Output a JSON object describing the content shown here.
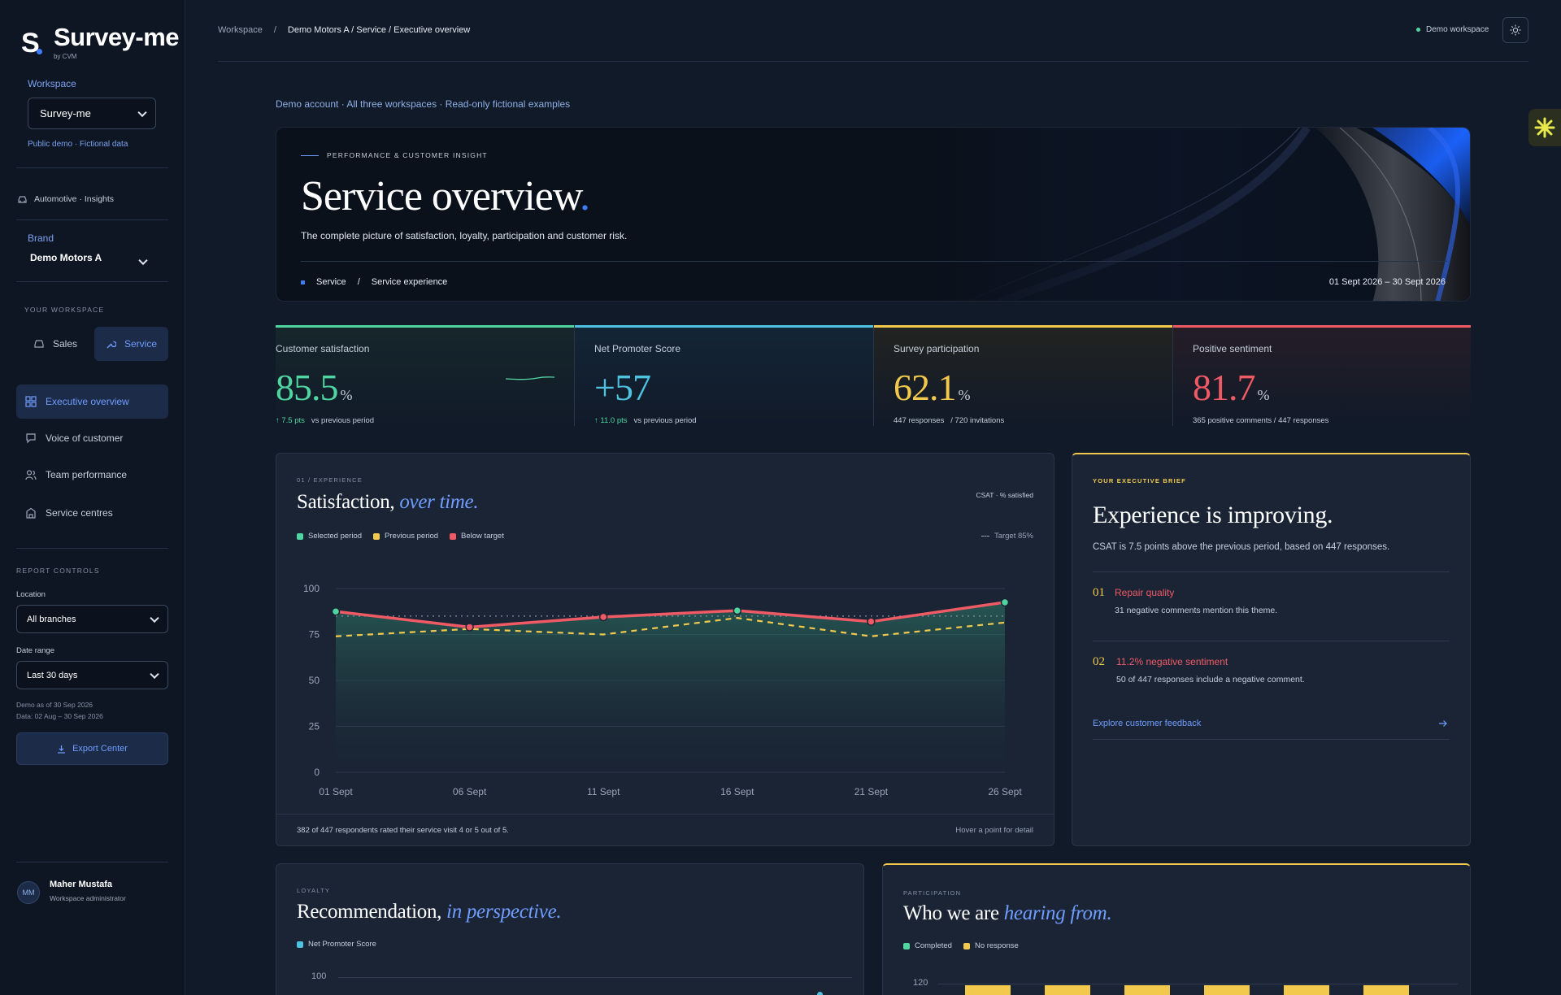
{
  "sidebar": {
    "logo_mark": "S",
    "logo_text": "Survey-me",
    "logo_sub": "by CVM",
    "workspace_label": "Workspace",
    "workspace_value": "Survey-me",
    "workspace_note": "Public demo · Fictional data",
    "industry": "Automotive · Insights",
    "brand_label": "Brand",
    "brand_value": "Demo Motors A",
    "your_workspace_label": "YOUR WORKSPACE",
    "seg_sales": "Sales",
    "seg_service": "Service",
    "nav": [
      {
        "label": "Executive overview",
        "icon": "grid-icon"
      },
      {
        "label": "Voice of customer",
        "icon": "chat-icon"
      },
      {
        "label": "Team performance",
        "icon": "people-icon"
      },
      {
        "label": "Service centres",
        "icon": "building-icon"
      }
    ],
    "report_controls_label": "REPORT CONTROLS",
    "location_label": "Location",
    "location_value": "All branches",
    "date_range_label": "Date range",
    "date_range_value": "Last 30 days",
    "demo_as_of": "Demo as of 30 Sep 2026",
    "data_range": "Data: 02 Aug – 30 Sep 2026",
    "export_label": "Export Center",
    "user_initials": "MM",
    "user_name": "Maher Mustafa",
    "user_role": "Workspace administrator"
  },
  "topbar": {
    "crumb_root": "Workspace",
    "crumb_sep": "/",
    "crumb_current": "Demo Motors A / Service / Executive overview",
    "workspace_badge": "Demo workspace"
  },
  "demo_note": "Demo account · All three workspaces · Read-only fictional examples",
  "hero": {
    "caption": "PERFORMANCE & CUSTOMER INSIGHT",
    "title": "Service overview",
    "title_dot": ".",
    "subtitle": "The complete picture of satisfaction, loyalty, participation and customer risk.",
    "tag1": "Service",
    "tag_sep": "/",
    "tag2": "Service experience",
    "date_range": "01 Sept 2026 – 30 Sept 2026"
  },
  "kpis": [
    {
      "label": "Customer satisfaction",
      "value": "85.5",
      "unit": "%",
      "delta": "↑ 7.5 pts",
      "foot": "vs previous period",
      "color": "#4fd6a0"
    },
    {
      "label": "Net Promoter Score",
      "value": "+57",
      "unit": "",
      "delta": "↑ 11.0 pts",
      "foot": "vs previous period",
      "color": "#4ec3e0"
    },
    {
      "label": "Survey participation",
      "value": "62.1",
      "unit": "%",
      "delta": "",
      "foot": "447 responses   / 720 invitations",
      "color": "#f2c94c"
    },
    {
      "label": "Positive sentiment",
      "value": "81.7",
      "unit": "%",
      "delta": "",
      "foot": "365 positive comments / 447 responses",
      "color": "#ef5a64"
    }
  ],
  "satisfaction": {
    "caption": "01 / EXPERIENCE",
    "title": "Satisfaction,",
    "title_em": "over time.",
    "metric_note": "CSAT · % satisfied",
    "legend": [
      "Selected period",
      "Previous period",
      "Below target"
    ],
    "target_label": "Target 85%",
    "footer_left": "382 of 447 respondents rated their service visit 4 or 5 out of 5.",
    "footer_right": "Hover a point for detail"
  },
  "chart_data": [
    {
      "type": "line",
      "x": [
        "01 Sept",
        "06 Sept",
        "11 Sept",
        "16 Sept",
        "21 Sept",
        "26 Sept"
      ],
      "ylim": [
        0,
        100
      ],
      "yticks": [
        0,
        25,
        50,
        75,
        100
      ],
      "target": 85,
      "series": [
        {
          "name": "Selected period",
          "values": [
            87.5,
            79,
            84.5,
            88,
            82,
            92.5
          ],
          "color": "#4fd6a0"
        },
        {
          "name": "Previous period",
          "values": [
            74,
            78,
            75,
            84,
            74,
            81.5
          ],
          "color": "#f2c94c"
        }
      ],
      "below_target_color": "#ef5a64"
    },
    {
      "type": "line",
      "title": "Recommendation, in perspective.",
      "series": [
        {
          "name": "Net Promoter Score",
          "values": []
        }
      ],
      "yticks_visible": [
        100
      ]
    },
    {
      "type": "bar",
      "title": "Who we are hearing from.",
      "series": [
        {
          "name": "Completed",
          "values": []
        },
        {
          "name": "No response",
          "values": []
        }
      ],
      "yticks_visible": [
        120
      ]
    }
  ],
  "brief": {
    "caption": "YOUR EXECUTIVE BRIEF",
    "title": "Experience is improving.",
    "summary": "CSAT is 7.5 points above the previous period, based on 447 responses.",
    "items": [
      {
        "num": "01",
        "title": "Repair quality",
        "text": "31 negative comments mention this theme."
      },
      {
        "num": "02",
        "title": "11.2% negative sentiment",
        "text": "50 of 447 responses include a negative comment."
      }
    ],
    "link": "Explore customer feedback"
  },
  "loyalty": {
    "caption": "LOYALTY",
    "title": "Recommendation,",
    "title_em": "in perspective.",
    "legend": "Net Promoter Score",
    "ytick": "100"
  },
  "participation": {
    "caption": "PARTICIPATION",
    "title": "Who we are",
    "title_em": "hearing from.",
    "legend": [
      "Completed",
      "No response"
    ],
    "ytick": "120"
  }
}
